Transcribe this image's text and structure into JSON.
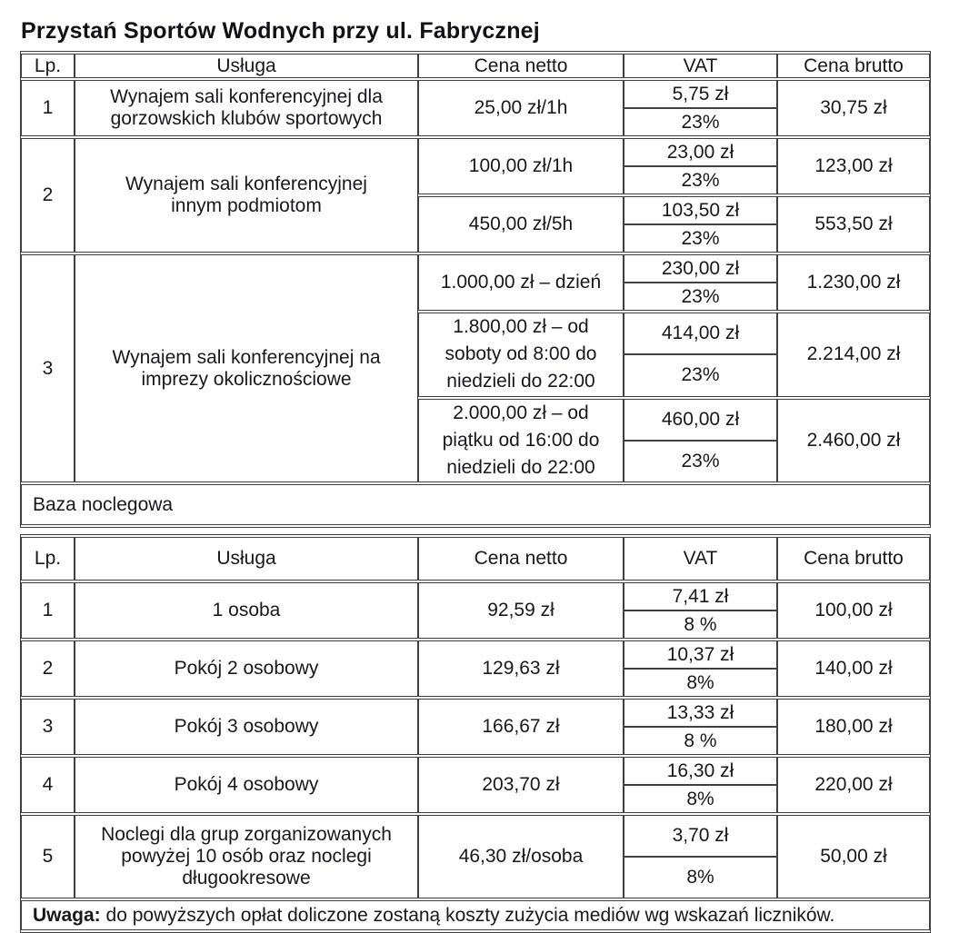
{
  "header": {
    "title": "Przystań Sportów Wodnych przy ul. Fabrycznej"
  },
  "columns": [
    "Lp.",
    "Usługa",
    "Cena netto",
    "VAT",
    "Cena brutto"
  ],
  "table1": {
    "rows": [
      {
        "lp": "1",
        "usluga": "Wynajem sali konferencyjnej dla\ngorzowskich klubów sportowych",
        "variants": [
          {
            "netto": "25,00 zł/1h",
            "vat_amount": "5,75 zł",
            "vat_rate": "23%",
            "brutto": "30,75 zł"
          }
        ]
      },
      {
        "lp": "2",
        "usluga": "Wynajem sali konferencyjnej\ninnym podmiotom",
        "variants": [
          {
            "netto": "100,00 zł/1h",
            "vat_amount": "23,00 zł",
            "vat_rate": "23%",
            "brutto": "123,00 zł"
          },
          {
            "netto": "450,00 zł/5h",
            "vat_amount": "103,50 zł",
            "vat_rate": "23%",
            "brutto": "553,50 zł"
          }
        ]
      },
      {
        "lp": "3",
        "usluga": "Wynajem sali konferencyjnej na\nimprezy okolicznościowe",
        "variants": [
          {
            "netto": "1.000,00 zł – dzień",
            "vat_amount": "230,00 zł",
            "vat_rate": "23%",
            "brutto": "1.230,00 zł"
          },
          {
            "netto": "1.800,00 zł – od\nsoboty od 8:00 do\nniedzieli do 22:00",
            "vat_amount": "414,00 zł",
            "vat_rate": "23%",
            "brutto": "2.214,00 zł"
          },
          {
            "netto": "2.000,00 zł – od\npiątku od 16:00 do\nniedzieli do 22:00",
            "vat_amount": "460,00 zł",
            "vat_rate": "23%",
            "brutto": "2.460,00 zł"
          }
        ]
      }
    ]
  },
  "section2": {
    "title": "Baza noclegowa"
  },
  "table2": {
    "rows": [
      {
        "lp": "1",
        "usluga": "1 osoba",
        "variants": [
          {
            "netto": "92,59 zł",
            "vat_amount": "7,41 zł",
            "vat_rate": "8 %",
            "brutto": "100,00 zł"
          }
        ]
      },
      {
        "lp": "2",
        "usluga": "Pokój 2 osobowy",
        "variants": [
          {
            "netto": "129,63 zł",
            "vat_amount": "10,37 zł",
            "vat_rate": "8%",
            "brutto": "140,00 zł"
          }
        ]
      },
      {
        "lp": "3",
        "usluga": "Pokój 3 osobowy",
        "variants": [
          {
            "netto": "166,67 zł",
            "vat_amount": "13,33 zł",
            "vat_rate": "8 %",
            "brutto": "180,00 zł"
          }
        ]
      },
      {
        "lp": "4",
        "usluga": "Pokój 4 osobowy",
        "variants": [
          {
            "netto": "203,70 zł",
            "vat_amount": "16,30 zł",
            "vat_rate": "8%",
            "brutto": "220,00 zł"
          }
        ]
      },
      {
        "lp": "5",
        "usluga": "Noclegi dla grup zorganizowanych\npowyżej 10 osób oraz noclegi\ndługookresowe",
        "variants": [
          {
            "netto": "46,30 zł/osoba",
            "vat_amount": "3,70 zł",
            "vat_rate": "8%",
            "brutto": "50,00 zł"
          }
        ]
      }
    ]
  },
  "footer": {
    "label": "Uwaga:",
    "text": " do powyższych opłat doliczone zostaną koszty zużycia mediów wg wskazań liczników."
  }
}
